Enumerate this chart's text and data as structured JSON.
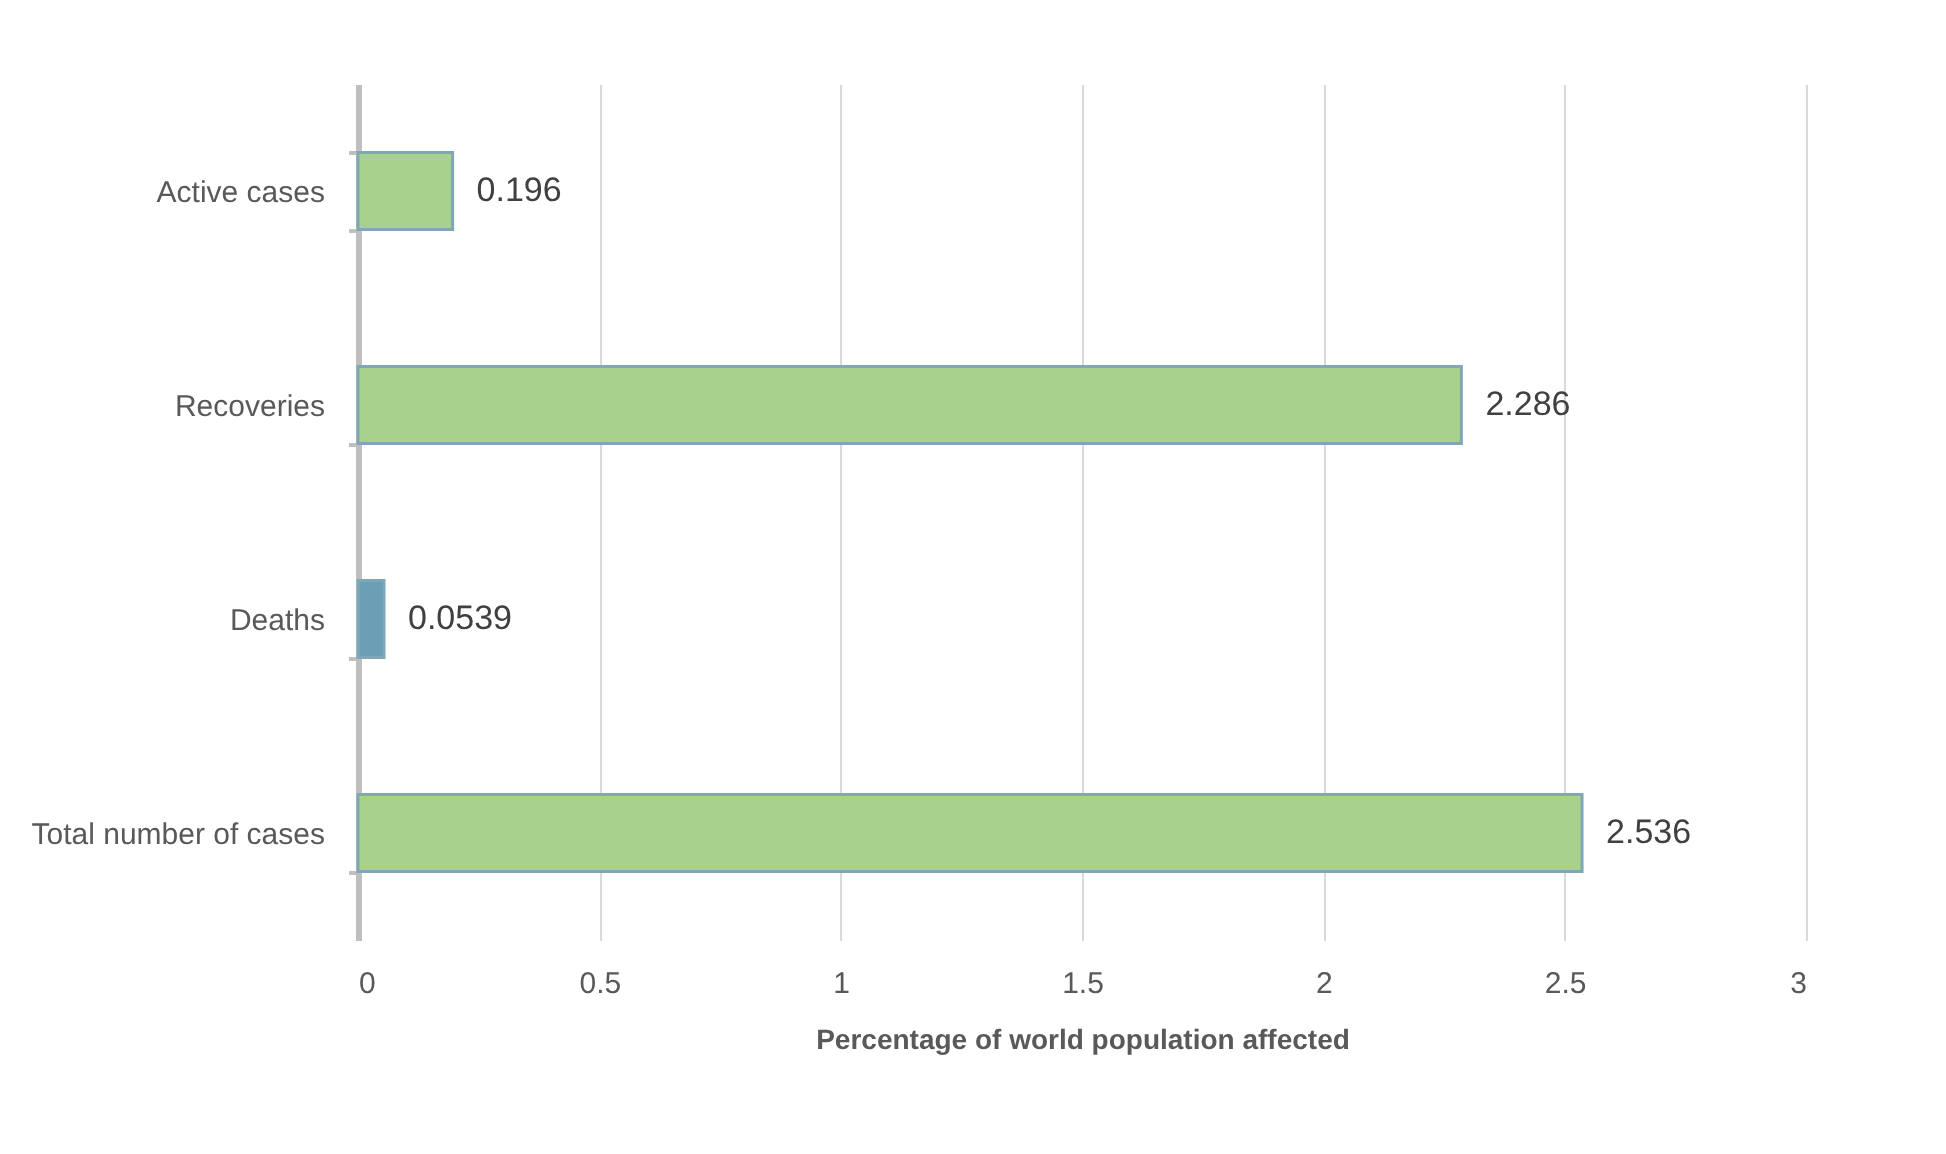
{
  "chart_data": {
    "type": "bar",
    "orientation": "horizontal",
    "xlabel": "Percentage of world population affected",
    "categories": [
      "Active cases",
      "Recoveries",
      "Deaths",
      "Total number of cases"
    ],
    "values": [
      0.196,
      2.286,
      0.0539,
      2.536
    ],
    "colors": [
      "#a9d18e",
      "#a9d18e",
      "#6a9fb5",
      "#a9d18e"
    ],
    "xlim": [
      0,
      3
    ],
    "xticks": [
      0,
      0.5,
      1,
      1.5,
      2,
      2.5,
      3
    ],
    "grid": "x",
    "data_labels": true
  }
}
